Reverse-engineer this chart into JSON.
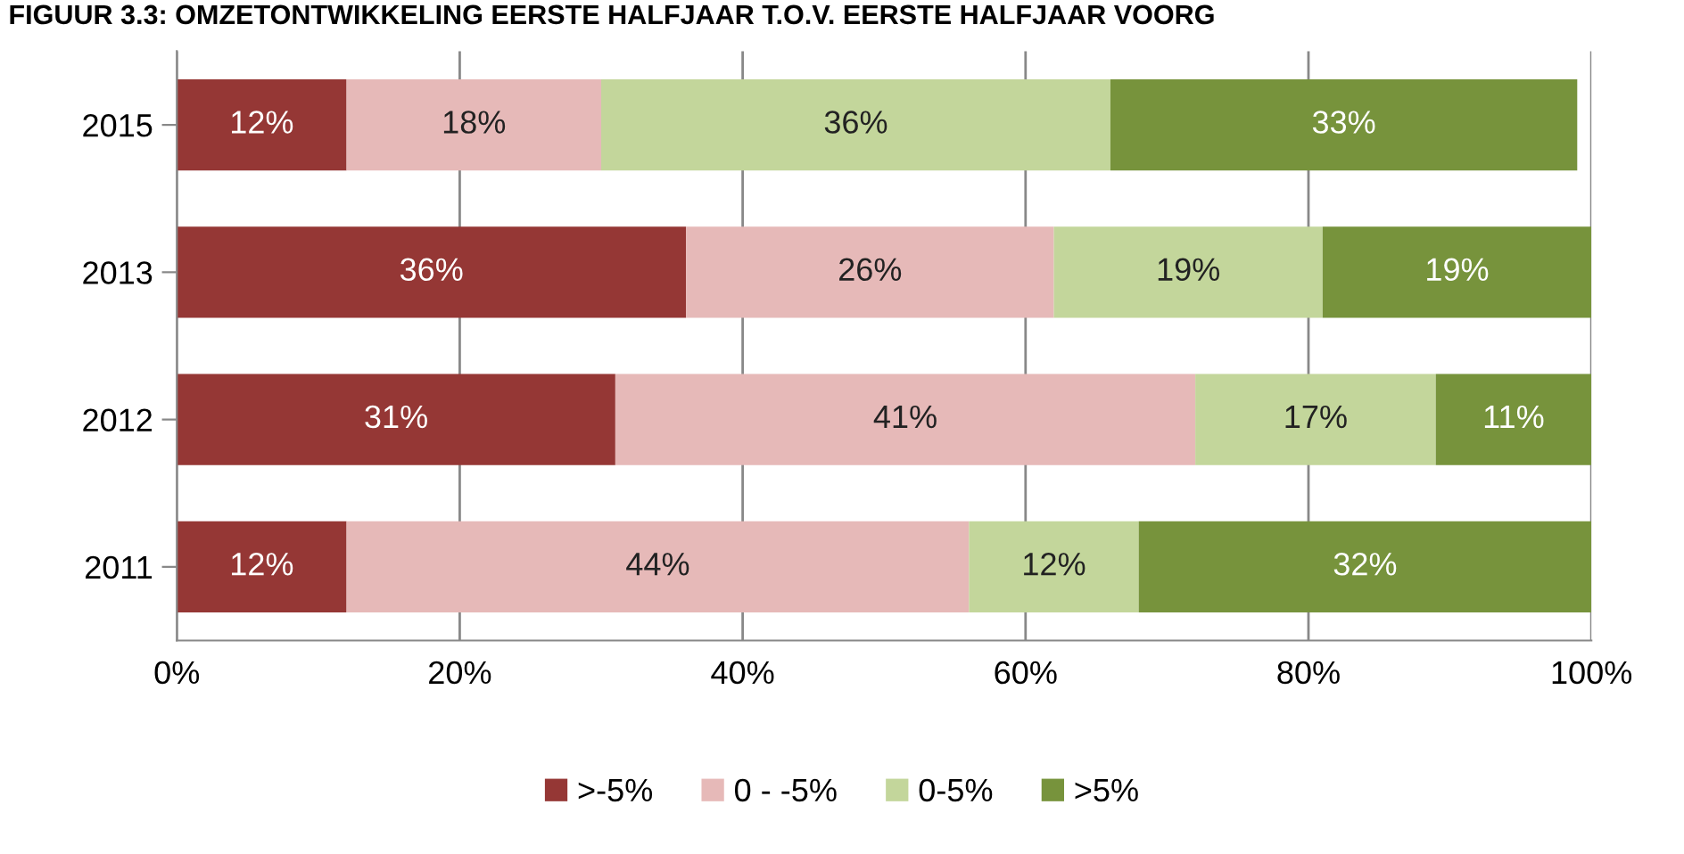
{
  "chart_data": {
    "type": "bar",
    "orientation": "horizontal",
    "stacked": true,
    "title": "FIGUUR 3.3: OMZETONTWIKKELING EERSTE HALFJAAR T.O.V. EERSTE HALFJAAR VOORG",
    "categories": [
      "2015",
      "2013",
      "2012",
      "2011"
    ],
    "series": [
      {
        "name": ">-5%",
        "color": "#953735",
        "values": [
          12,
          36,
          31,
          12
        ],
        "value_labels": [
          "12%",
          "36%",
          "31%",
          "12%"
        ]
      },
      {
        "name": "0 - -5%",
        "color": "#e6b9b8",
        "values": [
          18,
          26,
          41,
          44
        ],
        "value_labels": [
          "18%",
          "26%",
          "41%",
          "44%"
        ]
      },
      {
        "name": "0-5%",
        "color": "#c3d69b",
        "values": [
          36,
          19,
          17,
          12
        ],
        "value_labels": [
          "36%",
          "19%",
          "17%",
          "12%"
        ]
      },
      {
        "name": ">5%",
        "color": "#77933c",
        "values": [
          33,
          19,
          11,
          32
        ],
        "value_labels": [
          "33%",
          "19%",
          "11%",
          "32%"
        ]
      }
    ],
    "xlim": [
      0,
      100
    ],
    "xticks": [
      {
        "value": 0,
        "label": "0%"
      },
      {
        "value": 20,
        "label": "20%"
      },
      {
        "value": 40,
        "label": "40%"
      },
      {
        "value": 60,
        "label": "60%"
      },
      {
        "value": 80,
        "label": "80%"
      },
      {
        "value": 100,
        "label": "100%"
      }
    ],
    "grid": "x",
    "legend": "bottom"
  }
}
